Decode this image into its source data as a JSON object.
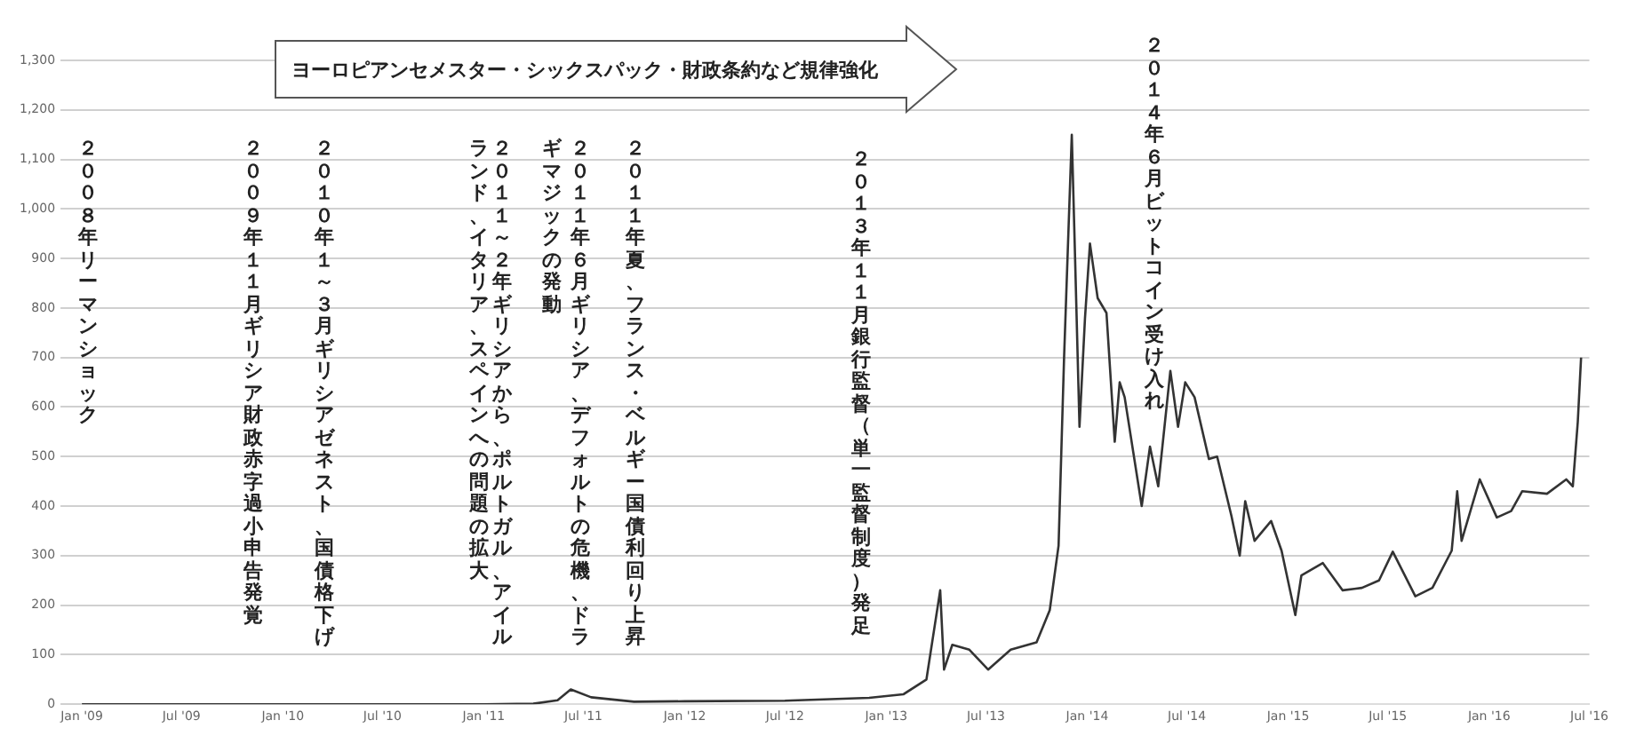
{
  "chart_data": {
    "type": "line",
    "x": [
      "2009-01-01",
      "2010-07-01",
      "2011-01-01",
      "2011-04-01",
      "2011-05-15",
      "2011-06-08",
      "2011-07-15",
      "2011-10-01",
      "2012-01-01",
      "2012-07-01",
      "2012-12-01",
      "2013-02-01",
      "2013-03-15",
      "2013-04-09",
      "2013-04-16",
      "2013-05-01",
      "2013-06-01",
      "2013-07-05",
      "2013-08-15",
      "2013-10-01",
      "2013-10-25",
      "2013-11-10",
      "2013-11-20",
      "2013-12-04",
      "2013-12-10",
      "2013-12-18",
      "2013-12-28",
      "2014-01-06",
      "2014-01-20",
      "2014-02-05",
      "2014-02-20",
      "2014-03-01",
      "2014-03-10",
      "2014-04-10",
      "2014-04-25",
      "2014-05-10",
      "2014-06-01",
      "2014-06-15",
      "2014-06-28",
      "2014-07-15",
      "2014-08-10",
      "2014-08-25",
      "2014-09-20",
      "2014-10-05",
      "2014-10-15",
      "2014-11-01",
      "2014-12-01",
      "2014-12-20",
      "2015-01-14",
      "2015-01-25",
      "2015-03-05",
      "2015-04-10",
      "2015-05-15",
      "2015-06-15",
      "2015-07-10",
      "2015-08-20",
      "2015-09-20",
      "2015-10-25",
      "2015-11-04",
      "2015-11-12",
      "2015-12-15",
      "2016-01-15",
      "2016-02-10",
      "2016-03-01",
      "2016-04-15",
      "2016-05-20",
      "2016-06-01",
      "2016-06-10",
      "2016-06-16"
    ],
    "series": [
      {
        "color": "#333333",
        "values": [
          0,
          0,
          0,
          1,
          8,
          30,
          14,
          5,
          6,
          7,
          13,
          20,
          50,
          230,
          70,
          120,
          110,
          70,
          110,
          125,
          190,
          320,
          700,
          1150,
          900,
          560,
          780,
          930,
          820,
          790,
          530,
          650,
          620,
          400,
          520,
          440,
          673,
          560,
          650,
          620,
          495,
          500,
          380,
          300,
          410,
          330,
          370,
          310,
          180,
          260,
          285,
          230,
          235,
          250,
          308,
          218,
          235,
          310,
          430,
          330,
          454,
          377,
          390,
          430,
          425,
          454,
          440,
          570,
          700
        ]
      }
    ],
    "xlim": [
      "2009-01-01",
      "2016-07-01"
    ],
    "xticks": [
      {
        "value": "2009-01-01",
        "label": "Jan '09"
      },
      {
        "value": "2009-07-01",
        "label": "Jul '09"
      },
      {
        "value": "2010-01-01",
        "label": "Jan '10"
      },
      {
        "value": "2010-07-01",
        "label": "Jul '10"
      },
      {
        "value": "2011-01-01",
        "label": "Jan '11"
      },
      {
        "value": "2011-07-01",
        "label": "Jul '11"
      },
      {
        "value": "2012-01-01",
        "label": "Jan '12"
      },
      {
        "value": "2012-07-01",
        "label": "Jul '12"
      },
      {
        "value": "2013-01-01",
        "label": "Jan '13"
      },
      {
        "value": "2013-07-01",
        "label": "Jul '13"
      },
      {
        "value": "2014-01-01",
        "label": "Jan '14"
      },
      {
        "value": "2014-07-01",
        "label": "Jul '14"
      },
      {
        "value": "2015-01-01",
        "label": "Jan '15"
      },
      {
        "value": "2015-07-01",
        "label": "Jul '15"
      },
      {
        "value": "2016-01-01",
        "label": "Jan '16"
      },
      {
        "value": "2016-07-01",
        "label": "Jul '16"
      }
    ],
    "ylim": [
      0,
      1300
    ],
    "yticks": [
      0,
      100,
      200,
      300,
      400,
      500,
      600,
      700,
      800,
      900,
      {
        "value": 1000,
        "label": "1,000"
      },
      {
        "value": 1100,
        "label": "1,100"
      },
      {
        "value": 1200,
        "label": "1,200"
      },
      {
        "value": 1300,
        "label": "1,300"
      }
    ],
    "grid": "y",
    "marker": "none",
    "line_style": "solid",
    "annotations": [
      "ヨーロピアンセメスター・シックスパック・財政条約など規律強化",
      "２００８年リーマンショック",
      "２００９年１１月ギリシア財政赤字過小申告発覚",
      "２０１０年１～３月ギリシアゼネスト、国債格下げ",
      "２０１１～２年ギリシアから、ポルトガル、アイル",
      "ランド、イタリア、スペインへの問題の拡大",
      "２０１１年６月ギリシア、デフォルトの危機、ドラ",
      "ギマジックの発動",
      "２０１１年夏、フランス・ベルギー国債利回り上昇",
      "２０１３年１１月銀行監督（単一監督制度）発足",
      "２０１４年６月ビットコイン受け入れ"
    ]
  }
}
